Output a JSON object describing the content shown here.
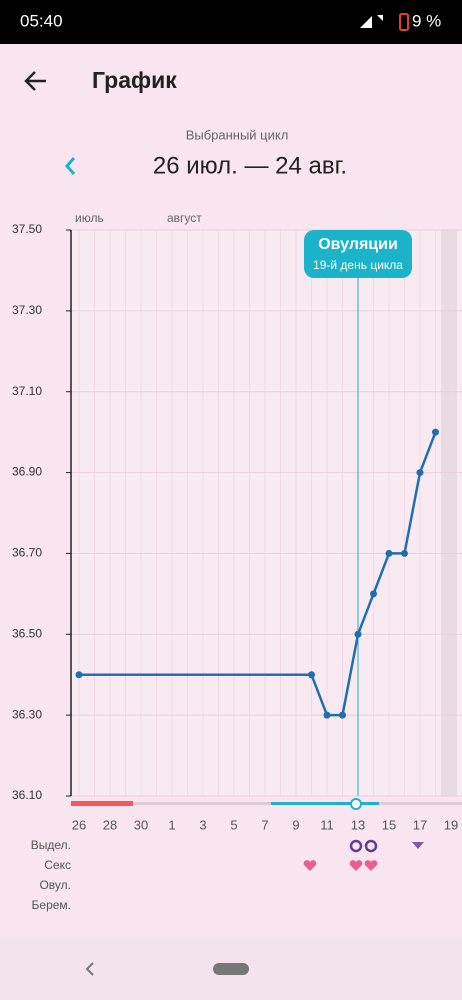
{
  "status_bar": {
    "time": "05:40",
    "battery": "9 %"
  },
  "header": {
    "title": "График"
  },
  "cycle": {
    "caption": "Выбранный цикл",
    "range": "26 июл. — 24 авг."
  },
  "chart_data": {
    "type": "line",
    "months": [
      "июль",
      "август"
    ],
    "categories": [
      "26",
      null,
      "28",
      null,
      "30",
      null,
      "1",
      null,
      "3",
      null,
      "5",
      null,
      "7",
      null,
      "9",
      null,
      "11",
      null,
      "13",
      null,
      "15",
      null,
      "17",
      null,
      "19"
    ],
    "series": [
      {
        "color": "#1f6fb0",
        "values": [
          36.4,
          null,
          null,
          null,
          null,
          null,
          null,
          null,
          null,
          null,
          null,
          null,
          null,
          null,
          null,
          36.4,
          36.3,
          36.3,
          36.5,
          36.6,
          36.7,
          36.7,
          36.9,
          37.0,
          null
        ]
      }
    ],
    "ylim": [
      36.1,
      37.5
    ],
    "yticks": [
      {
        "value": 36.1,
        "label": "36.10"
      },
      {
        "value": 36.3,
        "label": "36.30"
      },
      {
        "value": 36.5,
        "label": "36.50"
      },
      {
        "value": 36.7,
        "label": "36.70"
      },
      {
        "value": 36.9,
        "label": "36.90"
      },
      {
        "value": 37.1,
        "label": "37.10"
      },
      {
        "value": 37.3,
        "label": "37.30"
      },
      {
        "value": 37.5,
        "label": "37.50"
      }
    ],
    "grid": true,
    "span_gaps": true,
    "annotation": {
      "title": "Овуляции",
      "subtitle": "19-й день цикла"
    }
  },
  "rows": [
    "Выдел.",
    "Секс",
    "Овул.",
    "Берем."
  ]
}
